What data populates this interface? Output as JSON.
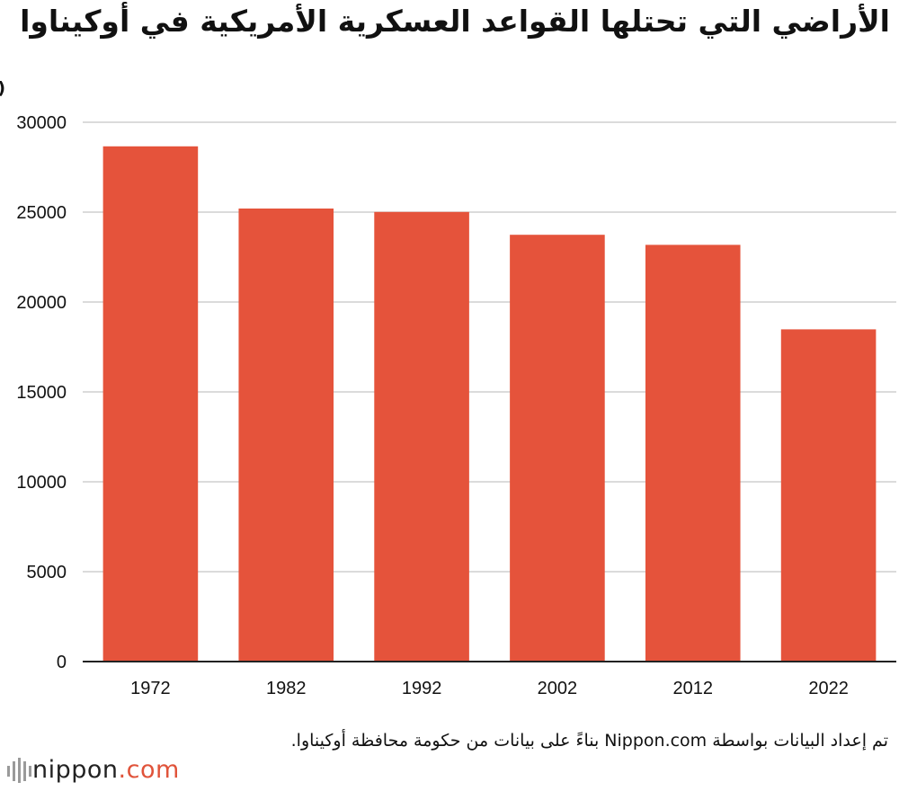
{
  "colors": {
    "bar": "#e5533b",
    "grid": "#cfcfcf",
    "axis": "#222222",
    "brand_dot": "#e0533a"
  },
  "chart_data": {
    "type": "bar",
    "title": "الأراضي التي تحتلها القواعد العسكرية الأمريكية في أوكيناوا",
    "ylabel": "(هكتار)",
    "xlabel": "",
    "categories": [
      "1972",
      "1982",
      "1992",
      "2002",
      "2012",
      "2022"
    ],
    "values": [
      28660,
      25200,
      25010,
      23740,
      23180,
      18480
    ],
    "ylim": [
      0,
      30000
    ],
    "yticks": [
      0,
      5000,
      10000,
      15000,
      20000,
      25000,
      30000
    ],
    "grid": true,
    "legend": "none"
  },
  "source": "تم إعداد البيانات بواسطة Nippon.com بناءً على بيانات من حكومة محافظة أوكيناوا.",
  "logo": {
    "name": "nippon",
    "suffix": ".com",
    "icon": "nippon-logo-icon"
  }
}
